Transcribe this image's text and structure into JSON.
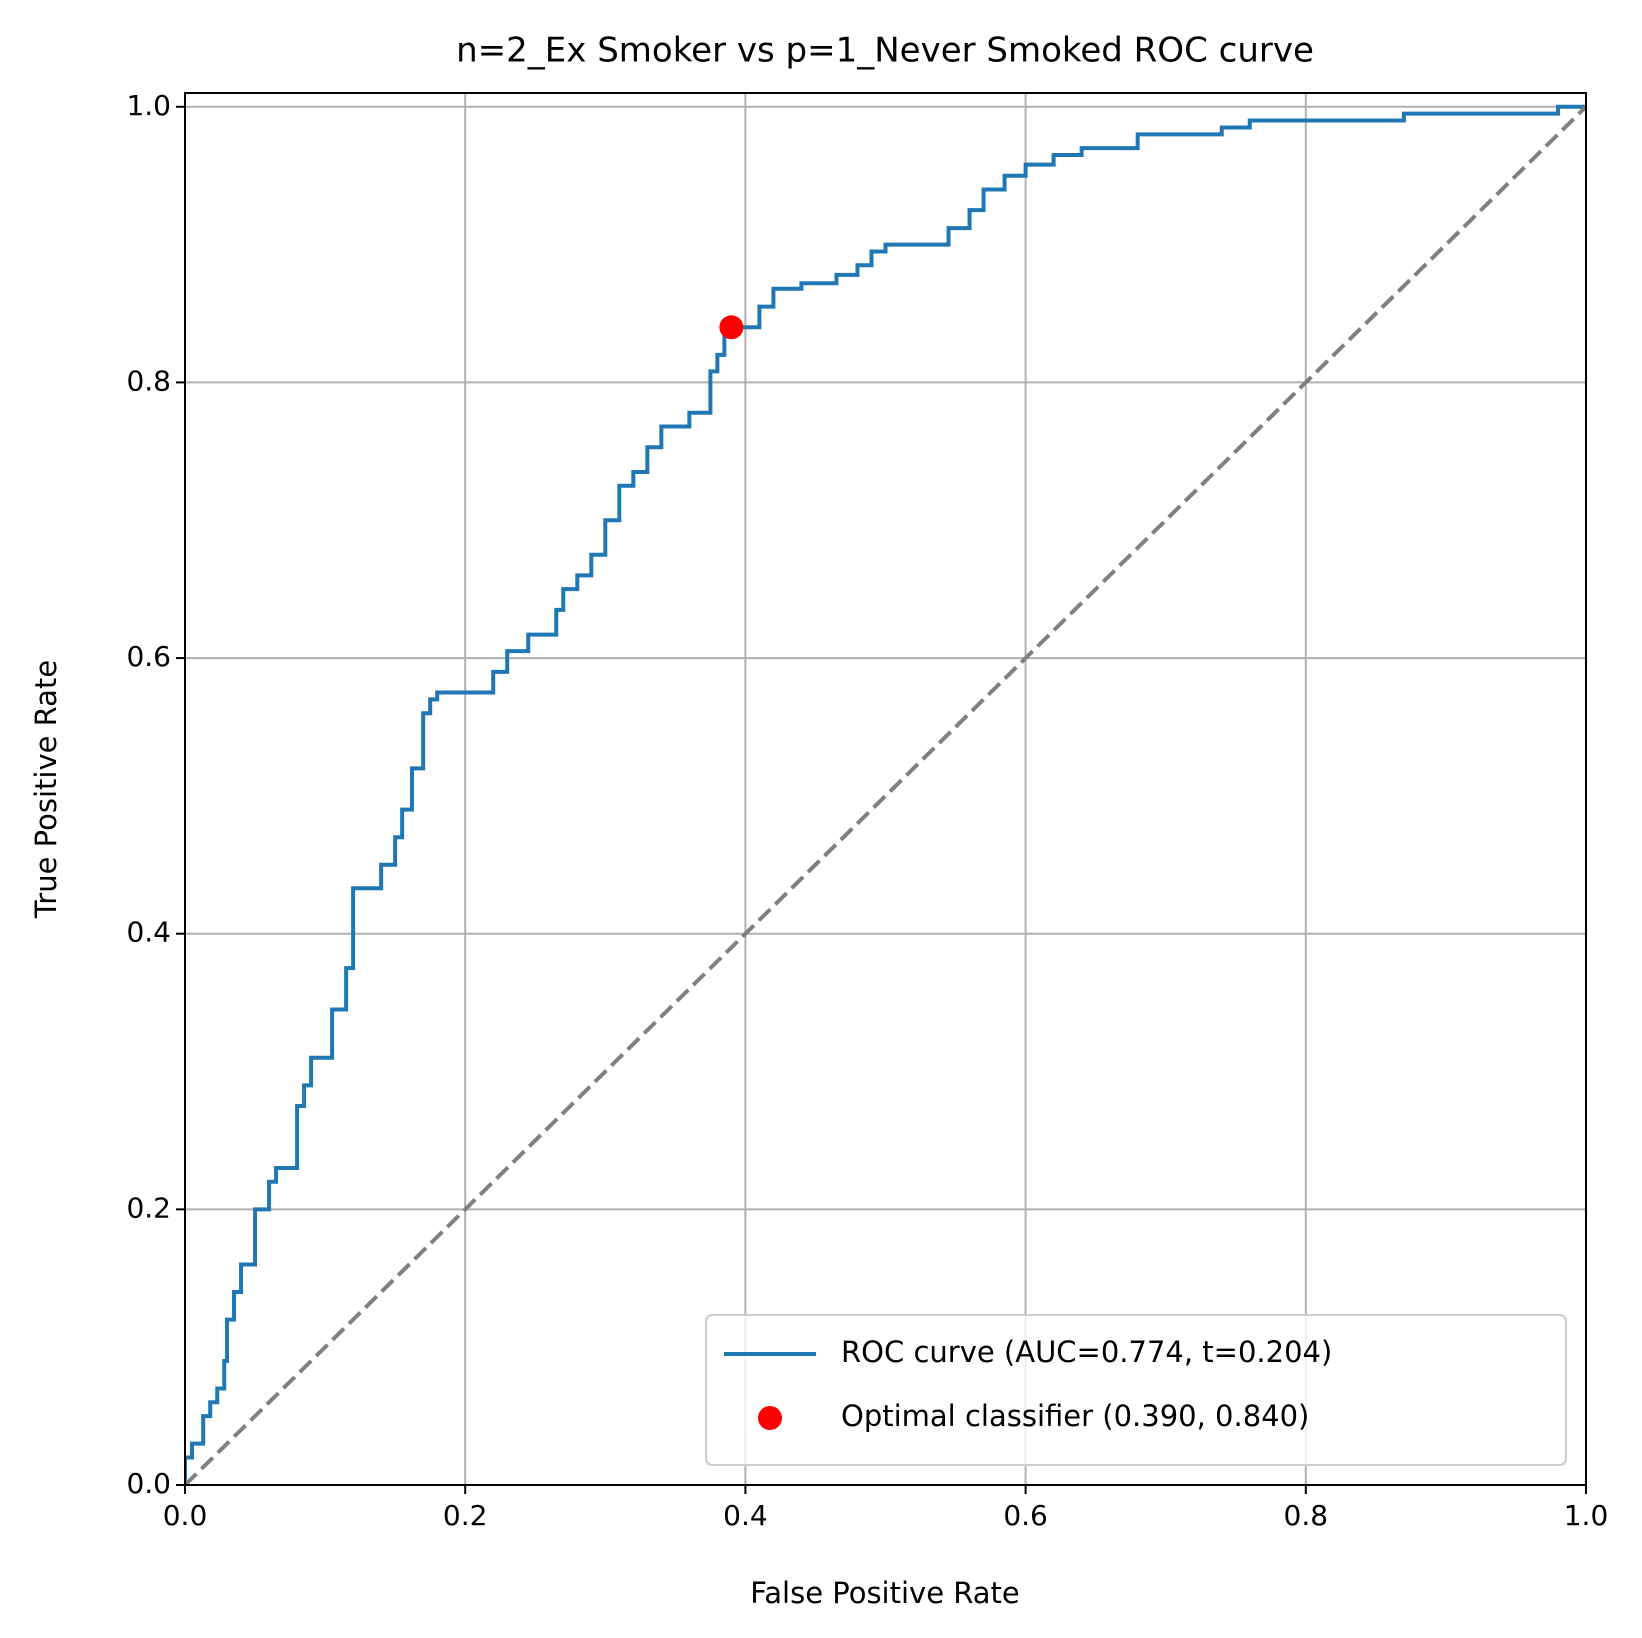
{
  "chart_data": {
    "type": "line",
    "title": "n=2_Ex Smoker vs p=1_Never Smoked ROC curve",
    "xlabel": "False Positive Rate",
    "ylabel": "True Positive Rate",
    "xlim": [
      0,
      1
    ],
    "ylim": [
      0,
      1.01
    ],
    "xticks": [
      {
        "value": 0,
        "label": "0.0"
      },
      0.2,
      0.4,
      0.6,
      0.8,
      {
        "value": 1,
        "label": "1.0"
      }
    ],
    "yticks": [
      {
        "value": 0,
        "label": "0.0"
      },
      0.2,
      0.4,
      0.6,
      0.8,
      {
        "value": 1,
        "label": "1.0"
      }
    ],
    "grid": true,
    "legend": "lower right",
    "series": [
      {
        "name": "ROC curve (AUC=0.774, t=0.204)",
        "type": "line",
        "color": "#1f77b4",
        "x": [
          0,
          0,
          0.005,
          0.005,
          0.013,
          0.013,
          0.018,
          0.018,
          0.023,
          0.023,
          0.028,
          0.028,
          0.03,
          0.03,
          0.035,
          0.035,
          0.04,
          0.04,
          0.05,
          0.05,
          0.06,
          0.06,
          0.065,
          0.065,
          0.08,
          0.08,
          0.085,
          0.085,
          0.09,
          0.09,
          0.105,
          0.105,
          0.115,
          0.115,
          0.12,
          0.12,
          0.14,
          0.14,
          0.15,
          0.15,
          0.155,
          0.155,
          0.162,
          0.162,
          0.17,
          0.17,
          0.175,
          0.175,
          0.18,
          0.18,
          0.22,
          0.22,
          0.23,
          0.23,
          0.245,
          0.245,
          0.265,
          0.265,
          0.27,
          0.27,
          0.28,
          0.28,
          0.29,
          0.29,
          0.3,
          0.3,
          0.31,
          0.31,
          0.32,
          0.32,
          0.33,
          0.33,
          0.34,
          0.34,
          0.36,
          0.36,
          0.375,
          0.375,
          0.38,
          0.38,
          0.385,
          0.385,
          0.41,
          0.41,
          0.42,
          0.42,
          0.44,
          0.44,
          0.465,
          0.465,
          0.48,
          0.48,
          0.49,
          0.49,
          0.5,
          0.5,
          0.545,
          0.545,
          0.56,
          0.56,
          0.57,
          0.57,
          0.585,
          0.585,
          0.6,
          0.6,
          0.62,
          0.62,
          0.64,
          0.64,
          0.68,
          0.68,
          0.74,
          0.74,
          0.76,
          0.76,
          0.87,
          0.87,
          0.98,
          0.98,
          1
        ],
        "y": [
          0,
          0.02,
          0.02,
          0.03,
          0.03,
          0.05,
          0.05,
          0.06,
          0.06,
          0.07,
          0.07,
          0.09,
          0.09,
          0.12,
          0.12,
          0.14,
          0.14,
          0.16,
          0.16,
          0.2,
          0.2,
          0.22,
          0.22,
          0.23,
          0.23,
          0.275,
          0.275,
          0.29,
          0.29,
          0.31,
          0.31,
          0.345,
          0.345,
          0.375,
          0.375,
          0.433,
          0.433,
          0.45,
          0.45,
          0.47,
          0.47,
          0.49,
          0.49,
          0.52,
          0.52,
          0.56,
          0.56,
          0.57,
          0.57,
          0.575,
          0.575,
          0.59,
          0.59,
          0.605,
          0.605,
          0.617,
          0.617,
          0.635,
          0.635,
          0.65,
          0.65,
          0.66,
          0.66,
          0.675,
          0.675,
          0.7,
          0.7,
          0.725,
          0.725,
          0.735,
          0.735,
          0.753,
          0.753,
          0.768,
          0.768,
          0.778,
          0.778,
          0.808,
          0.808,
          0.82,
          0.82,
          0.84,
          0.84,
          0.855,
          0.855,
          0.868,
          0.868,
          0.872,
          0.872,
          0.878,
          0.878,
          0.885,
          0.885,
          0.895,
          0.895,
          0.9,
          0.9,
          0.912,
          0.912,
          0.925,
          0.925,
          0.94,
          0.94,
          0.95,
          0.95,
          0.958,
          0.958,
          0.965,
          0.965,
          0.97,
          0.97,
          0.98,
          0.98,
          0.985,
          0.985,
          0.99,
          0.99,
          0.995,
          0.995,
          1,
          1
        ]
      },
      {
        "type": "dashed",
        "color": "#808080",
        "x": [
          0,
          1
        ],
        "y": [
          0,
          1
        ]
      },
      {
        "name": "Optimal classifier (0.390, 0.840)",
        "type": "point",
        "color": "#ff0000",
        "x": [
          0.39
        ],
        "y": [
          0.84
        ]
      }
    ]
  }
}
